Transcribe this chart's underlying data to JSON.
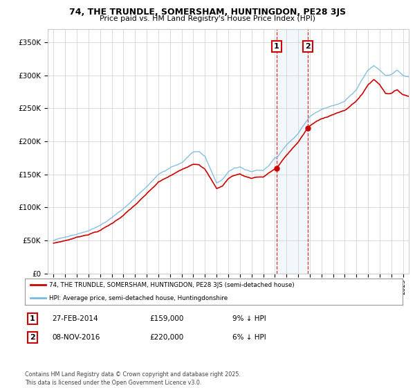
{
  "title": "74, THE TRUNDLE, SOMERSHAM, HUNTINGDON, PE28 3JS",
  "subtitle": "Price paid vs. HM Land Registry's House Price Index (HPI)",
  "legend_line1": "74, THE TRUNDLE, SOMERSHAM, HUNTINGDON, PE28 3JS (semi-detached house)",
  "legend_line2": "HPI: Average price, semi-detached house, Huntingdonshire",
  "footer": "Contains HM Land Registry data © Crown copyright and database right 2025.\nThis data is licensed under the Open Government Licence v3.0.",
  "annotation1_label": "1",
  "annotation1_date": "27-FEB-2014",
  "annotation1_price": "£159,000",
  "annotation1_hpi": "9% ↓ HPI",
  "annotation2_label": "2",
  "annotation2_date": "08-NOV-2016",
  "annotation2_price": "£220,000",
  "annotation2_hpi": "6% ↓ HPI",
  "sale1_x": 2014.15,
  "sale1_y": 159000,
  "sale2_x": 2016.85,
  "sale2_y": 220000,
  "hpi_color": "#7ab8e0",
  "price_color": "#cc0000",
  "shaded_color": "#ddeeff",
  "background_color": "#ffffff",
  "grid_color": "#cccccc",
  "ylim": [
    0,
    370000
  ],
  "xlim": [
    1994.5,
    2025.5
  ],
  "yticks": [
    0,
    50000,
    100000,
    150000,
    200000,
    250000,
    300000,
    350000
  ],
  "xticks": [
    1995,
    1996,
    1997,
    1998,
    1999,
    2000,
    2001,
    2002,
    2003,
    2004,
    2005,
    2006,
    2007,
    2008,
    2009,
    2010,
    2011,
    2012,
    2013,
    2014,
    2015,
    2016,
    2017,
    2018,
    2019,
    2020,
    2021,
    2022,
    2023,
    2024,
    2025
  ]
}
